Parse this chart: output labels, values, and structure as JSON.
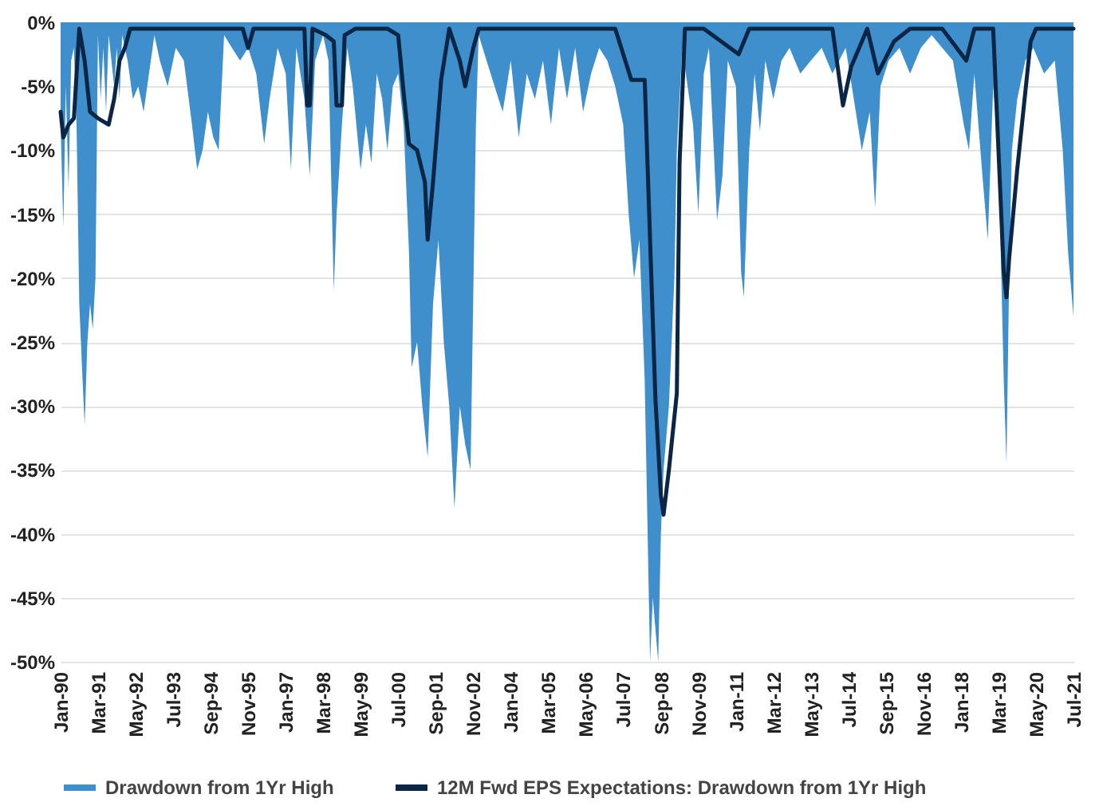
{
  "chart_data": {
    "type": "area",
    "xlim": [
      "1990-01",
      "2021-07"
    ],
    "xticks": [
      {
        "value": "1990-01",
        "label": "Jan-90"
      },
      {
        "value": "1991-03",
        "label": "Mar-91"
      },
      {
        "value": "1992-05",
        "label": "May-92"
      },
      {
        "value": "1993-07",
        "label": "Jul-93"
      },
      {
        "value": "1994-09",
        "label": "Sep-94"
      },
      {
        "value": "1995-11",
        "label": "Nov-95"
      },
      {
        "value": "1997-01",
        "label": "Jan-97"
      },
      {
        "value": "1998-03",
        "label": "Mar-98"
      },
      {
        "value": "1999-05",
        "label": "May-99"
      },
      {
        "value": "2000-07",
        "label": "Jul-00"
      },
      {
        "value": "2001-09",
        "label": "Sep-01"
      },
      {
        "value": "2002-11",
        "label": "Nov-02"
      },
      {
        "value": "2004-01",
        "label": "Jan-04"
      },
      {
        "value": "2005-03",
        "label": "Mar-05"
      },
      {
        "value": "2006-05",
        "label": "May-06"
      },
      {
        "value": "2007-07",
        "label": "Jul-07"
      },
      {
        "value": "2008-09",
        "label": "Sep-08"
      },
      {
        "value": "2009-11",
        "label": "Nov-09"
      },
      {
        "value": "2011-01",
        "label": "Jan-11"
      },
      {
        "value": "2012-03",
        "label": "Mar-12"
      },
      {
        "value": "2013-05",
        "label": "May-13"
      },
      {
        "value": "2014-07",
        "label": "Jul-14"
      },
      {
        "value": "2015-09",
        "label": "Sep-15"
      },
      {
        "value": "2016-11",
        "label": "Nov-16"
      },
      {
        "value": "2018-01",
        "label": "Jan-18"
      },
      {
        "value": "2019-03",
        "label": "Mar-19"
      },
      {
        "value": "2020-05",
        "label": "May-20"
      },
      {
        "value": "2021-07",
        "label": "Jul-21"
      }
    ],
    "ylim": [
      -50,
      0
    ],
    "yticks": [
      {
        "value": 0,
        "label": "0%"
      },
      {
        "value": -5,
        "label": "-5%"
      },
      {
        "value": -10,
        "label": "-10%"
      },
      {
        "value": -15,
        "label": "-15%"
      },
      {
        "value": -20,
        "label": "-20%"
      },
      {
        "value": -25,
        "label": "-25%"
      },
      {
        "value": -30,
        "label": "-30%"
      },
      {
        "value": -35,
        "label": "-35%"
      },
      {
        "value": -40,
        "label": "-40%"
      },
      {
        "value": -45,
        "label": "-45%"
      },
      {
        "value": -50,
        "label": "-50%"
      }
    ],
    "grid": "y",
    "legend": "bottom",
    "series": [
      {
        "name": "Drawdown from 1Yr High",
        "color": "#3f8fcc",
        "x": [
          "1990-01",
          "1990-02",
          "1990-03",
          "1990-04",
          "1990-05",
          "1990-06",
          "1990-07",
          "1990-08",
          "1990-09",
          "1990-10",
          "1990-11",
          "1990-12",
          "1991-01",
          "1991-02",
          "1991-03",
          "1991-04",
          "1991-05",
          "1991-06",
          "1991-07",
          "1991-08",
          "1991-09",
          "1991-10",
          "1991-11",
          "1991-12",
          "1992-02",
          "1992-04",
          "1992-06",
          "1992-08",
          "1992-10",
          "1992-12",
          "1993-02",
          "1993-05",
          "1993-08",
          "1993-11",
          "1994-02",
          "1994-04",
          "1994-06",
          "1994-08",
          "1994-10",
          "1994-12",
          "1995-02",
          "1995-05",
          "1995-08",
          "1995-11",
          "1996-02",
          "1996-05",
          "1996-07",
          "1996-10",
          "1997-01",
          "1997-03",
          "1997-05",
          "1997-08",
          "1997-10",
          "1997-12",
          "1998-03",
          "1998-05",
          "1998-07",
          "1998-08",
          "1998-10",
          "1998-12",
          "1999-02",
          "1999-05",
          "1999-07",
          "1999-09",
          "1999-11",
          "2000-01",
          "2000-03",
          "2000-05",
          "2000-07",
          "2000-09",
          "2000-11",
          "2000-12",
          "2001-02",
          "2001-04",
          "2001-06",
          "2001-08",
          "2001-10",
          "2001-12",
          "2002-02",
          "2002-04",
          "2002-06",
          "2002-08",
          "2002-10",
          "2002-12",
          "2003-01",
          "2003-04",
          "2003-07",
          "2003-10",
          "2004-01",
          "2004-04",
          "2004-07",
          "2004-10",
          "2005-01",
          "2005-04",
          "2005-07",
          "2005-10",
          "2006-01",
          "2006-04",
          "2006-07",
          "2006-10",
          "2007-01",
          "2007-04",
          "2007-07",
          "2007-09",
          "2007-11",
          "2008-01",
          "2008-03",
          "2008-05",
          "2008-06",
          "2008-08",
          "2008-09",
          "2008-10",
          "2008-12",
          "2009-02",
          "2009-03",
          "2009-05",
          "2009-07",
          "2009-09",
          "2009-11",
          "2010-01",
          "2010-03",
          "2010-06",
          "2010-08",
          "2010-10",
          "2011-01",
          "2011-03",
          "2011-04",
          "2011-06",
          "2011-08",
          "2011-10",
          "2011-12",
          "2012-03",
          "2012-06",
          "2012-09",
          "2013-01",
          "2013-05",
          "2013-09",
          "2014-01",
          "2014-06",
          "2014-09",
          "2014-12",
          "2015-03",
          "2015-05",
          "2015-07",
          "2015-10",
          "2016-02",
          "2016-06",
          "2016-10",
          "2017-02",
          "2017-06",
          "2017-10",
          "2018-02",
          "2018-04",
          "2018-06",
          "2018-09",
          "2018-11",
          "2019-01",
          "2019-03",
          "2019-05",
          "2019-06",
          "2019-07",
          "2019-08",
          "2019-10",
          "2020-01",
          "2020-04",
          "2020-08",
          "2020-12",
          "2021-03",
          "2021-05",
          "2021-07"
        ],
        "values": [
          -8,
          -16,
          -5,
          -13,
          -3,
          -2,
          -8,
          -22,
          -27,
          -31.5,
          -25,
          -22,
          -24,
          -20,
          -1,
          -6,
          -2,
          -7,
          -1,
          -3,
          -5,
          -2,
          -6,
          -1,
          -3,
          -6,
          -5,
          -7,
          -4,
          -1,
          -3,
          -5,
          -2,
          -3,
          -8,
          -11.5,
          -10,
          -7,
          -9,
          -10,
          -1,
          -2,
          -3,
          -2,
          -4,
          -9.5,
          -6,
          -2,
          -4,
          -11.5,
          -2,
          -6,
          -12,
          -3,
          -1,
          -3,
          -21,
          -15,
          -8,
          -2,
          -5,
          -11.5,
          -8,
          -11,
          -4,
          -6,
          -10,
          -5,
          -4,
          -8,
          -18,
          -27,
          -25,
          -30,
          -34,
          -22,
          -17,
          -25,
          -30,
          -38,
          -30,
          -33,
          -35,
          -8,
          -1,
          -3,
          -5,
          -7,
          -3,
          -9,
          -4,
          -6,
          -3,
          -8,
          -2,
          -6,
          -2,
          -7,
          -4,
          -2,
          -3,
          -5,
          -8,
          -15,
          -20,
          -17,
          -28,
          -50,
          -45,
          -50,
          -40,
          -35,
          -30,
          -20,
          -10,
          -2,
          -5,
          -8,
          -15,
          -4,
          -2,
          -15.5,
          -12,
          -3,
          -5,
          -19.5,
          -21.5,
          -10,
          -4,
          -8.5,
          -3,
          -6,
          -3,
          -2,
          -4,
          -3,
          -2,
          -4,
          -2,
          -6,
          -10,
          -7,
          -14.5,
          -5,
          -3,
          -2,
          -4,
          -2,
          -1,
          -2,
          -3,
          -8,
          -10,
          -4,
          -12,
          -17,
          -5,
          -10,
          -28,
          -34.5,
          -20,
          -10,
          -6,
          -3,
          -2,
          -4,
          -3,
          -10,
          -18,
          -23
        ]
      },
      {
        "name": "12M Fwd EPS Expectations: Drawdown from 1Yr High",
        "type": "line",
        "color": "#0b2545",
        "x": [
          "1990-01",
          "1990-02",
          "1990-04",
          "1990-06",
          "1990-08",
          "1990-10",
          "1990-12",
          "1991-03",
          "1991-07",
          "1991-09",
          "1991-11",
          "1992-01",
          "1992-03",
          "1992-08",
          "1993-03",
          "1993-10",
          "1994-06",
          "1995-03",
          "1995-09",
          "1995-11",
          "1996-01",
          "1996-09",
          "1997-03",
          "1997-08",
          "1997-09",
          "1997-10",
          "1997-11",
          "1998-04",
          "1998-07",
          "1998-08",
          "1998-10",
          "1998-11",
          "1999-03",
          "1999-09",
          "2000-03",
          "2000-07",
          "2000-09",
          "2000-11",
          "2001-02",
          "2001-05",
          "2001-06",
          "2001-08",
          "2001-11",
          "2002-02",
          "2002-06",
          "2002-08",
          "2002-11",
          "2003-01",
          "2004-01",
          "2005-01",
          "2006-01",
          "2007-01",
          "2007-04",
          "2007-10",
          "2008-03",
          "2008-07",
          "2008-09",
          "2008-10",
          "2008-12",
          "2009-03",
          "2009-04",
          "2009-06",
          "2010-01",
          "2011-02",
          "2011-06",
          "2012-06",
          "2013-06",
          "2014-01",
          "2014-05",
          "2014-08",
          "2015-02",
          "2015-06",
          "2015-12",
          "2016-06",
          "2017-06",
          "2018-03",
          "2018-06",
          "2019-01",
          "2019-05",
          "2019-06",
          "2019-07",
          "2019-10",
          "2019-12",
          "2020-03",
          "2020-05",
          "2021-07"
        ],
        "values": [
          -7,
          -9,
          -8,
          -7.5,
          -0.5,
          -3,
          -7,
          -7.5,
          -8,
          -6,
          -3,
          -2,
          -0.5,
          -0.5,
          -0.5,
          -0.5,
          -0.5,
          -0.5,
          -0.5,
          -2,
          -0.5,
          -0.5,
          -0.5,
          -0.5,
          -6.5,
          -6.5,
          -0.5,
          -1,
          -1.5,
          -6.5,
          -6.5,
          -1,
          -0.5,
          -0.5,
          -0.5,
          -1,
          -5.5,
          -9.5,
          -10,
          -12.5,
          -17,
          -12.5,
          -4.5,
          -0.5,
          -3,
          -5,
          -2,
          -0.5,
          -0.5,
          -0.5,
          -0.5,
          -0.5,
          -0.5,
          -4.5,
          -4.5,
          -29.5,
          -37,
          -38.5,
          -35,
          -29,
          -11,
          -0.5,
          -0.5,
          -2.5,
          -0.5,
          -0.5,
          -0.5,
          -0.5,
          -6.5,
          -3.5,
          -0.5,
          -4,
          -1.5,
          -0.5,
          -0.5,
          -3,
          -0.5,
          -0.5,
          -19.5,
          -21.5,
          -18.5,
          -11.5,
          -7.5,
          -1.5,
          -0.5,
          -0.5
        ]
      }
    ]
  }
}
